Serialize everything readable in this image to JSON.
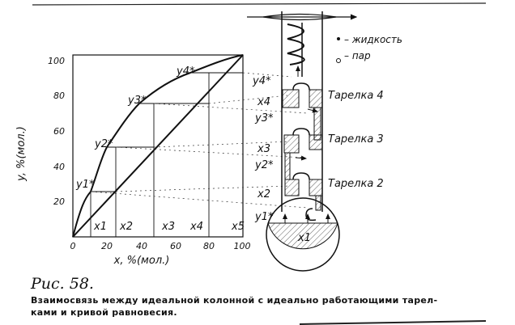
{
  "figure": {
    "number": "Рис. 58.",
    "caption_line1": "Взаимосвязь между идеальной колонной с идеально работающими тарел-",
    "caption_line2": "ками и кривой равновесия."
  },
  "chart": {
    "xlabel": "x, %(мол.)",
    "ylabel": "y, %(мол.)",
    "x_ticks": [
      "0",
      "20",
      "40",
      "60",
      "80",
      "100"
    ],
    "y_ticks": [
      "20",
      "40",
      "60",
      "80",
      "100"
    ],
    "curve_labels": [
      "y1*",
      "y2*",
      "y3*",
      "y4*"
    ],
    "x_labels": [
      "x1",
      "x2",
      "x3",
      "x4",
      "x5"
    ]
  },
  "column": {
    "plates": [
      "Тарелка 4",
      "Тарелка 3",
      "Тарелка 2"
    ],
    "stream_labels": [
      "y4*",
      "x4",
      "y3*",
      "x3",
      "y2*",
      "x2",
      "y1*"
    ],
    "flask_label": "x1",
    "legend": {
      "liquid": "– жидкость",
      "vapor": "– пар"
    }
  }
}
